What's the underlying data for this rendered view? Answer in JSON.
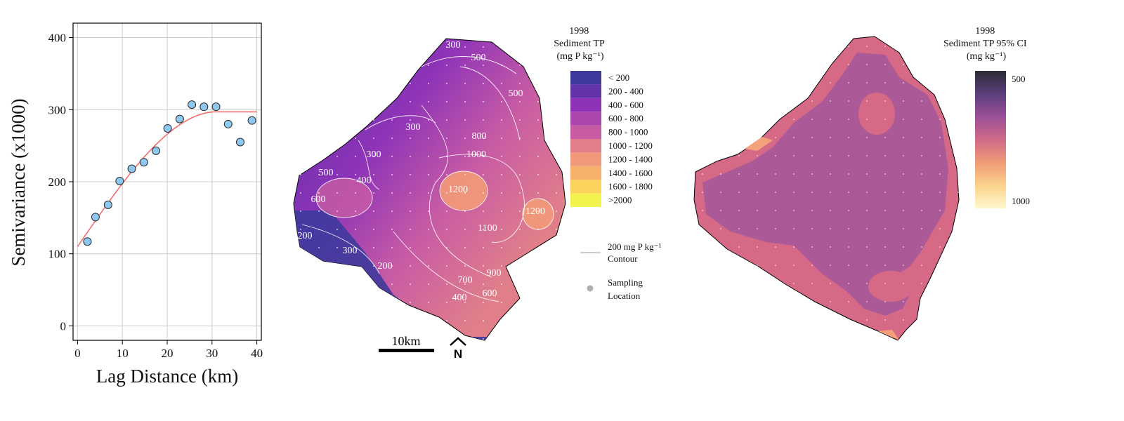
{
  "chart_data": [
    {
      "type": "scatter",
      "xlabel": "Lag Distance (km)",
      "ylabel": "Semivariance (x1000)",
      "xlim": [
        -1,
        41
      ],
      "ylim": [
        -20,
        420
      ],
      "xticks": [
        0,
        10,
        20,
        30,
        40
      ],
      "yticks": [
        0,
        100,
        200,
        300,
        400
      ],
      "grid": true,
      "points": [
        {
          "x": 2.2,
          "y": 117
        },
        {
          "x": 4.0,
          "y": 151
        },
        {
          "x": 6.8,
          "y": 168
        },
        {
          "x": 9.4,
          "y": 201
        },
        {
          "x": 12.1,
          "y": 218
        },
        {
          "x": 14.8,
          "y": 227
        },
        {
          "x": 17.5,
          "y": 243
        },
        {
          "x": 20.1,
          "y": 274
        },
        {
          "x": 22.8,
          "y": 287
        },
        {
          "x": 25.5,
          "y": 307
        },
        {
          "x": 28.2,
          "y": 304
        },
        {
          "x": 30.9,
          "y": 304
        },
        {
          "x": 33.6,
          "y": 280
        },
        {
          "x": 36.3,
          "y": 255
        },
        {
          "x": 38.9,
          "y": 285
        }
      ],
      "model": {
        "type": "spherical",
        "nugget": 110,
        "sill": 297,
        "range": 31,
        "x_max": 40,
        "color": "#f07070"
      }
    },
    {
      "type": "heatmap",
      "title": "1998\nSediment TP\n(mg P kg⁻¹)",
      "legend": [
        {
          "label": "< 200",
          "color": "#3e3a9c"
        },
        {
          "label": "200 - 400",
          "color": "#6233a9"
        },
        {
          "label": "400 - 600",
          "color": "#8e33b8"
        },
        {
          "label": "600 - 800",
          "color": "#ab46ae"
        },
        {
          "label": "800 - 1000",
          "color": "#c85ca4"
        },
        {
          "label": "1000 - 1200",
          "color": "#e07f8a"
        },
        {
          "label": "1200 - 1400",
          "color": "#f0987a"
        },
        {
          "label": "1400 - 1600",
          "color": "#f8b16c"
        },
        {
          "label": "1600 - 1800",
          "color": "#fad25c"
        },
        {
          "label": ">2000",
          "color": "#f2f24e"
        }
      ],
      "contour_labels": [
        "300",
        "500",
        "500",
        "300",
        "800",
        "300",
        "1000",
        "500",
        "400",
        "1200",
        "1200",
        "600",
        "1100",
        "200",
        "300",
        "900",
        "700",
        "600",
        "200",
        "400"
      ],
      "contour_legend": "200 mg P kg⁻¹\nContour",
      "sampling_legend": "Sampling\nLocation",
      "scale_bar": "10km",
      "north": "N"
    },
    {
      "type": "heatmap",
      "title": "1998\nSediment TP 95% CI\n(mg kg⁻¹)",
      "colorbar_labels": [
        "500",
        "1000"
      ],
      "colorbar_colors": [
        "#2b2b35",
        "#5a3d7a",
        "#9a4f97",
        "#d06b88",
        "#ef9b76",
        "#fbd38c",
        "#fff8cc"
      ]
    }
  ],
  "colors": {
    "point_fill": "#8ec8f0",
    "point_stroke": "#2a2a2a",
    "grid": "#cccccc",
    "contour": "#ffffff",
    "outline": "#000000"
  }
}
